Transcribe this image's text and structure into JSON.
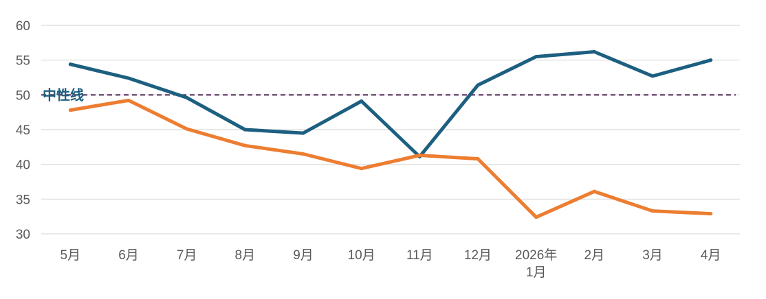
{
  "chart_data": {
    "type": "line",
    "title": "",
    "xlabel": "",
    "ylabel": "",
    "categories": [
      "5月",
      "6月",
      "7月",
      "8月",
      "9月",
      "10月",
      "11月",
      "12月",
      "2026年\n1月",
      "2月",
      "3月",
      "4月"
    ],
    "yticks": [
      30,
      35,
      40,
      45,
      50,
      55,
      60
    ],
    "ylim": [
      30,
      60
    ],
    "grid": true,
    "legend": "none",
    "series": [
      {
        "color": "#1d5f80",
        "values": [
          54.4,
          52.4,
          49.6,
          45.0,
          44.5,
          49.1,
          41.1,
          51.4,
          55.5,
          56.2,
          52.7,
          55.0
        ]
      },
      {
        "color": "#ed7d31",
        "values": [
          47.8,
          49.2,
          45.1,
          42.7,
          41.5,
          39.4,
          41.3,
          40.8,
          32.4,
          36.1,
          33.3,
          32.9
        ]
      }
    ],
    "reference_line": {
      "label": "中性线",
      "value": 50,
      "color": "#4b1f4f",
      "label_color": "#1d5f80"
    }
  }
}
